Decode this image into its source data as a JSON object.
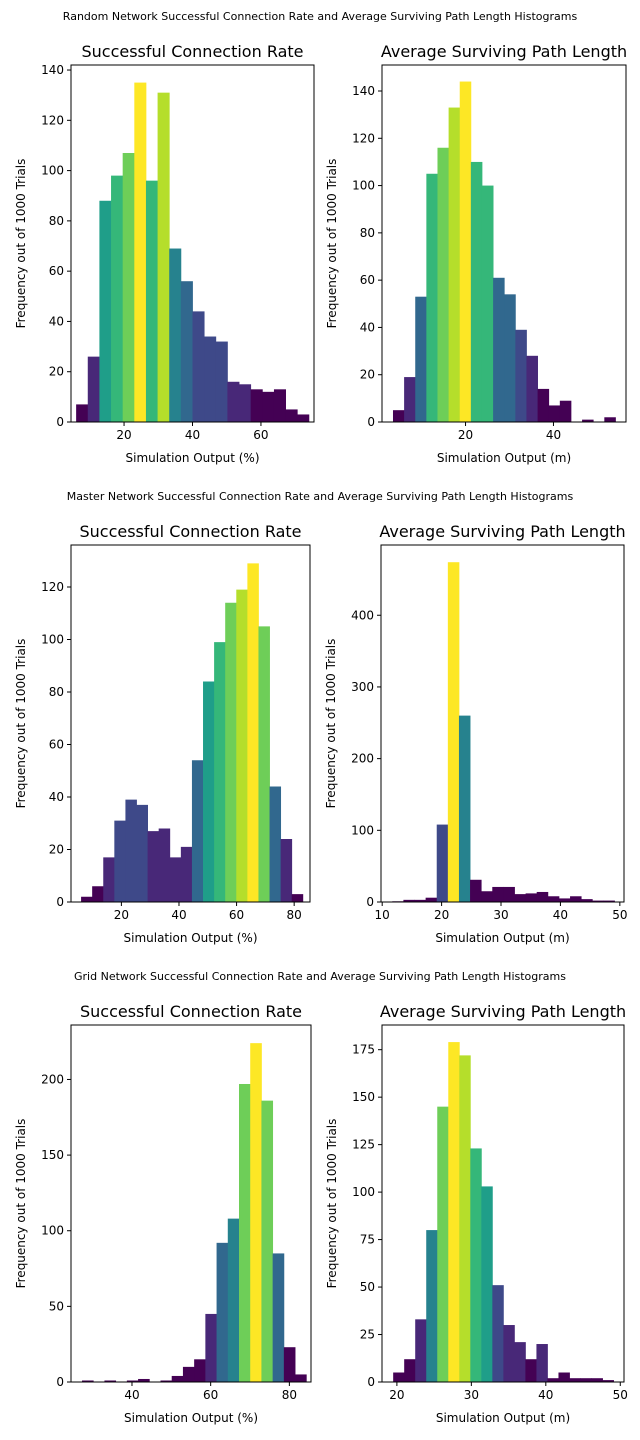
{
  "figure": {
    "rows": [
      {
        "suptitle": "Random Network Successful Connection Rate and Average Surviving Path Length Histograms"
      },
      {
        "suptitle": "Master Network Successful Connection Rate and Average Surviving Path Length Histograms"
      },
      {
        "suptitle": "Grid Network Successful Connection Rate and Average Surviving Path Length Histograms"
      }
    ]
  },
  "colormap": [
    "#440154",
    "#482878",
    "#3e4989",
    "#31688e",
    "#26828e",
    "#1f9e89",
    "#35b779",
    "#6ece58",
    "#b5de2b",
    "#fde725"
  ],
  "chart_data": [
    {
      "type": "bar",
      "title": "Successful Connection Rate",
      "xlabel": "Simulation Output (%)",
      "ylabel": "Frequency out of 1000 Trials",
      "xlim": [
        4.5,
        75.5
      ],
      "ylim": [
        0,
        142
      ],
      "xticks": [
        20,
        40,
        60
      ],
      "yticks": [
        0,
        20,
        40,
        60,
        80,
        100,
        120,
        140
      ],
      "bin_start": 6.0,
      "bin_width": 3.4,
      "values": [
        7,
        26,
        88,
        98,
        107,
        135,
        96,
        131,
        69,
        56,
        44,
        34,
        32,
        16,
        15,
        13,
        12,
        13,
        5,
        3
      ]
    },
    {
      "type": "bar",
      "title": "Average Surviving Path Length",
      "xlabel": "Simulation Output (m)",
      "ylabel": "Frequency out of 1000 Trials",
      "xlim": [
        1.0,
        56.5
      ],
      "ylim": [
        0,
        151
      ],
      "xticks": [
        20,
        40
      ],
      "yticks": [
        0,
        20,
        40,
        60,
        80,
        100,
        120,
        140
      ],
      "bin_start": 3.5,
      "bin_width": 2.53,
      "values": [
        5,
        19,
        53,
        105,
        116,
        133,
        144,
        110,
        100,
        61,
        54,
        39,
        28,
        14,
        7,
        9,
        0,
        1,
        0,
        2
      ]
    },
    {
      "type": "bar",
      "title": "Successful Connection Rate",
      "xlabel": "Simulation Output (%)",
      "ylabel": "Frequency out of 1000 Trials",
      "xlim": [
        2.5,
        85.5
      ],
      "ylim": [
        0,
        136
      ],
      "xticks": [
        20,
        40,
        60,
        80
      ],
      "yticks": [
        0,
        20,
        40,
        60,
        80,
        100,
        120
      ],
      "bin_start": 6.0,
      "bin_width": 3.85,
      "values": [
        2,
        6,
        17,
        31,
        39,
        37,
        27,
        28,
        17,
        21,
        54,
        84,
        99,
        114,
        119,
        129,
        105,
        44,
        24,
        3
      ]
    },
    {
      "type": "bar",
      "title": "Average Surviving Path Length",
      "xlabel": "Simulation Output (m)",
      "ylabel": "Frequency out of 1000 Trials",
      "xlim": [
        9.8,
        50.7
      ],
      "ylim": [
        0,
        498
      ],
      "xticks": [
        10,
        20,
        30,
        40,
        50
      ],
      "yticks": [
        0,
        100,
        200,
        300,
        400
      ],
      "bin_start": 11.7,
      "bin_width": 1.87,
      "values": [
        1,
        3,
        3,
        6,
        108,
        474,
        260,
        31,
        15,
        21,
        21,
        11,
        12,
        14,
        8,
        5,
        8,
        4,
        2,
        2
      ]
    },
    {
      "type": "bar",
      "title": "Successful Connection Rate",
      "xlabel": "Simulation Output (%)",
      "ylabel": "Frequency out of 1000 Trials",
      "xlim": [
        24.5,
        85.5
      ],
      "ylim": [
        0,
        236
      ],
      "xticks": [
        40,
        60,
        80
      ],
      "yticks": [
        0,
        50,
        100,
        150,
        200
      ],
      "bin_start": 27.3,
      "bin_width": 2.85,
      "values": [
        1,
        0,
        1,
        0,
        1,
        2,
        0,
        1,
        4,
        10,
        15,
        45,
        92,
        108,
        197,
        224,
        186,
        85,
        23,
        5
      ]
    },
    {
      "type": "bar",
      "title": "Average Surviving Path Length",
      "xlabel": "Simulation Output (m)",
      "ylabel": "Frequency out of 1000 Trials",
      "xlim": [
        18.0,
        50.5
      ],
      "ylim": [
        0,
        188
      ],
      "xticks": [
        20,
        30,
        40,
        50
      ],
      "yticks": [
        0,
        25,
        50,
        75,
        100,
        125,
        150,
        175
      ],
      "bin_start": 19.5,
      "bin_width": 1.48,
      "values": [
        5,
        12,
        33,
        80,
        145,
        179,
        172,
        123,
        103,
        51,
        30,
        21,
        12,
        20,
        2,
        5,
        2,
        2,
        2,
        1
      ]
    }
  ]
}
